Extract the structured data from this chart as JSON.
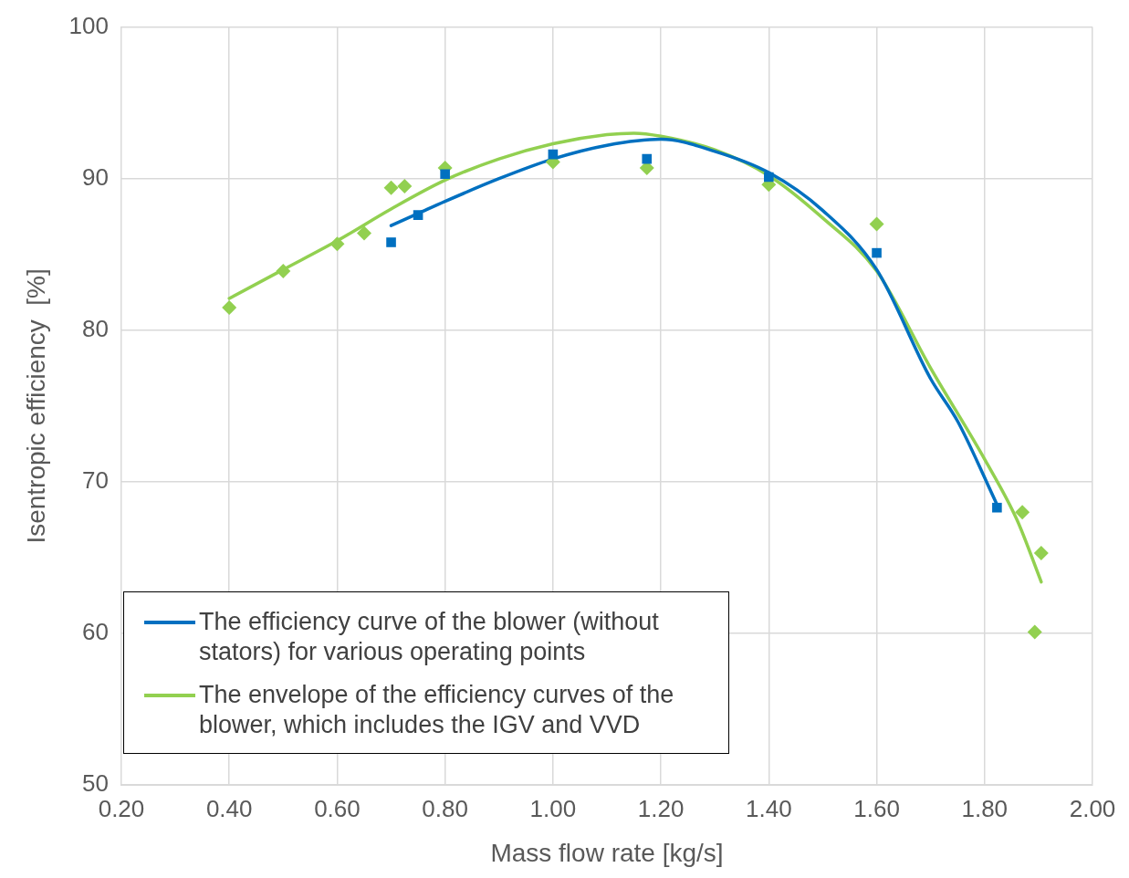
{
  "chart_data": {
    "type": "scatter",
    "xlabel": "Mass flow rate [kg/s]",
    "ylabel": "Isentropic efficiency  [%]",
    "xlim": [
      0.2,
      2.0
    ],
    "xticks": [
      {
        "value": 0.2,
        "label": "0.20"
      },
      {
        "value": 0.4,
        "label": "0.40"
      },
      {
        "value": 0.6,
        "label": "0.60"
      },
      {
        "value": 0.8,
        "label": "0.80"
      },
      {
        "value": 1.0,
        "label": "1.00"
      },
      {
        "value": 1.2,
        "label": "1.20"
      },
      {
        "value": 1.4,
        "label": "1.40"
      },
      {
        "value": 1.6,
        "label": "1.60"
      },
      {
        "value": 1.8,
        "label": "1.80"
      },
      {
        "value": 2.0,
        "label": "2.00"
      }
    ],
    "ylim": [
      50,
      100
    ],
    "yticks": [
      50,
      60,
      70,
      80,
      90,
      100
    ],
    "grid": true,
    "legend": "bottom left",
    "series": [
      {
        "marker": "square",
        "color": "#0070c0",
        "x": [
          0.7,
          0.75,
          0.8,
          1.0,
          1.174,
          1.4,
          1.6,
          1.823
        ],
        "values": [
          85.8,
          87.6,
          90.3,
          91.6,
          91.3,
          90.1,
          85.1,
          68.3
        ]
      },
      {
        "marker": "diamond",
        "color": "#92d050",
        "x": [
          0.4,
          0.5,
          0.6,
          0.65,
          0.7,
          0.725,
          0.8,
          1.0,
          1.174,
          1.4,
          1.6,
          1.87,
          1.893,
          1.905
        ],
        "values": [
          81.5,
          83.9,
          85.7,
          86.4,
          89.4,
          89.5,
          90.7,
          91.1,
          90.7,
          89.6,
          87.0,
          68.0,
          60.1,
          65.3
        ]
      },
      {
        "type": "line",
        "marker": "none",
        "name": "The efficiency curve of the blower (without stators) for various operating points",
        "color": "#0070c0",
        "x": [
          0.7,
          0.75,
          0.8,
          0.9,
          1.0,
          1.1,
          1.2,
          1.3,
          1.4,
          1.5,
          1.6,
          1.7,
          1.75,
          1.823
        ],
        "values": [
          86.9,
          87.7,
          88.5,
          90.0,
          91.3,
          92.2,
          92.6,
          91.8,
          90.4,
          87.9,
          84.0,
          76.8,
          74.0,
          68.5
        ]
      },
      {
        "type": "line",
        "marker": "none",
        "name": "The envelope of the efficiency curves of the blower, which includes the IGV and VVD",
        "color": "#92d050",
        "x": [
          0.4,
          0.5,
          0.6,
          0.7,
          0.8,
          0.9,
          1.0,
          1.1,
          1.15,
          1.2,
          1.3,
          1.4,
          1.5,
          1.6,
          1.7,
          1.8,
          1.86,
          1.905
        ],
        "values": [
          82.1,
          84.0,
          85.9,
          88.0,
          89.9,
          91.3,
          92.3,
          92.9,
          93.0,
          92.8,
          91.9,
          90.2,
          87.4,
          83.9,
          77.5,
          71.5,
          67.5,
          63.4
        ]
      }
    ]
  }
}
